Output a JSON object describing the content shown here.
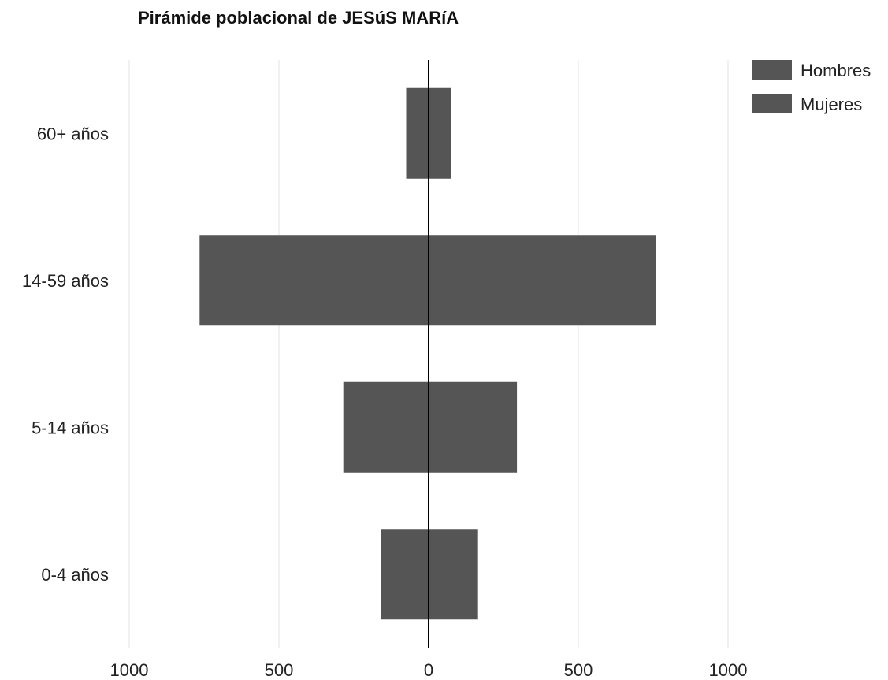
{
  "chart_data": {
    "type": "bar",
    "orientation": "horizontal",
    "title": "Pirámide poblacional de JESúS MARíA",
    "categories": [
      "60+ años",
      "14-59 años",
      "5-14 años",
      "0-4 años"
    ],
    "series": [
      {
        "name": "Hombres",
        "values": [
          -75,
          -765,
          -285,
          -160
        ],
        "color": "#555555"
      },
      {
        "name": "Mujeres",
        "values": [
          75,
          760,
          295,
          165
        ],
        "color": "#555555"
      }
    ],
    "xlim": [
      -1000,
      1000
    ],
    "xticks": [
      {
        "value": -1000,
        "label": "1000"
      },
      {
        "value": -500,
        "label": "500"
      },
      {
        "value": 0,
        "label": "0"
      },
      {
        "value": 500,
        "label": "500"
      },
      {
        "value": 1000,
        "label": "1000"
      }
    ],
    "grid": true,
    "legend_position": "top-right"
  }
}
